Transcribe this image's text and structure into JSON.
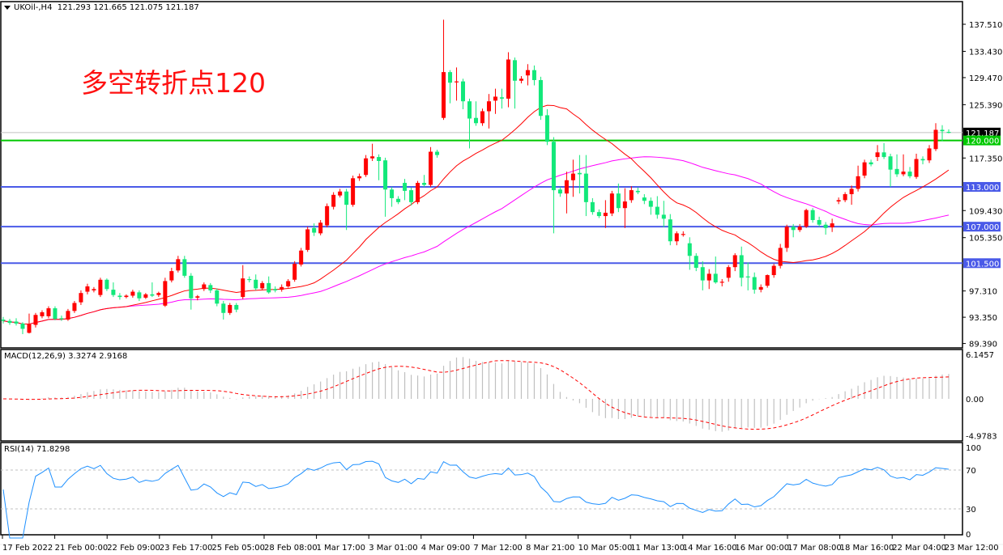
{
  "header": {
    "symbol": "UKOil-,H4",
    "ohlc": "121.293 121.665 121.075 121.187"
  },
  "annotation": "多空转折点120",
  "colors": {
    "up": "#ff0000",
    "down": "#12e87a",
    "ma_fast": "#ff0000",
    "ma_slow": "#ff00ff",
    "support": "#4a5ae8",
    "pivot": "#00c800",
    "current": "#000000",
    "rsi": "#1e90ff",
    "macd_hist": "#c0c0c0",
    "macd_signal": "#ff0000"
  },
  "price_axis": {
    "ticks": [
      "137.510",
      "133.430",
      "129.470",
      "125.390",
      "117.350",
      "109.430",
      "105.350",
      "97.310",
      "93.350",
      "89.390"
    ]
  },
  "levels": [
    {
      "value": 121.187,
      "label": "121.187",
      "kind": "current"
    },
    {
      "value": 120.0,
      "label": "120.000",
      "kind": "pivot"
    },
    {
      "value": 113.0,
      "label": "113.000",
      "kind": "support"
    },
    {
      "value": 107.0,
      "label": "107.000",
      "kind": "support"
    },
    {
      "value": 101.5,
      "label": "101.500",
      "kind": "support"
    }
  ],
  "macd": {
    "title": "MACD(12,26,9) 3.3274 2.9168",
    "ticks": [
      "6.1457",
      "0.00",
      "-4.9783"
    ]
  },
  "rsi": {
    "title": "RSI(14) 71.8298",
    "ticks": [
      "100",
      "70",
      "30",
      "0"
    ]
  },
  "time_axis": [
    "17 Feb 2022",
    "21 Feb 00:00",
    "22 Feb 09:00",
    "23 Feb 17:00",
    "25 Feb 05:00",
    "28 Feb 08:00",
    "1 Mar 17:00",
    "3 Mar 01:00",
    "4 Mar 09:00",
    "7 Mar 12:00",
    "8 Mar 21:00",
    "10 Mar 05:00",
    "11 Mar 13:00",
    "14 Mar 16:00",
    "16 Mar 00:00",
    "17 Mar 08:00",
    "18 Mar 16:00",
    "22 Mar 04:00",
    "23 Mar 12:00"
  ],
  "chart_data": {
    "type": "candlestick",
    "ylim": [
      89.39,
      137.51
    ],
    "ohlc": [
      [
        93.0,
        93.4,
        92.4,
        92.8
      ],
      [
        92.8,
        93.1,
        92.2,
        92.5
      ],
      [
        92.7,
        93.2,
        92.1,
        92.4
      ],
      [
        92.4,
        92.6,
        90.8,
        91.6
      ],
      [
        91.0,
        93.9,
        90.9,
        92.3
      ],
      [
        92.2,
        94.0,
        91.8,
        93.7
      ],
      [
        93.5,
        94.4,
        93.2,
        94.1
      ],
      [
        93.5,
        95.0,
        93.2,
        94.7
      ],
      [
        94.7,
        95.0,
        92.9,
        93.1
      ],
      [
        93.2,
        93.6,
        92.8,
        93.1
      ],
      [
        93.0,
        94.6,
        92.8,
        94.3
      ],
      [
        94.3,
        95.8,
        94.0,
        95.5
      ],
      [
        95.6,
        97.4,
        95.2,
        97.0
      ],
      [
        97.2,
        98.4,
        96.8,
        98.0
      ],
      [
        97.4,
        97.9,
        97.1,
        97.6
      ],
      [
        96.7,
        99.3,
        96.4,
        99.0
      ],
      [
        99.0,
        99.2,
        97.3,
        97.6
      ],
      [
        97.5,
        98.6,
        96.4,
        96.7
      ],
      [
        96.6,
        97.0,
        96.0,
        96.4
      ],
      [
        96.4,
        96.8,
        96.2,
        96.6
      ],
      [
        96.6,
        97.5,
        96.3,
        97.2
      ],
      [
        97.1,
        97.4,
        95.8,
        96.2
      ],
      [
        96.3,
        97.0,
        96.1,
        96.8
      ],
      [
        96.8,
        98.6,
        96.4,
        96.6
      ],
      [
        96.7,
        97.2,
        96.4,
        97.0
      ],
      [
        95.1,
        99.3,
        94.9,
        98.8
      ],
      [
        98.9,
        100.8,
        98.6,
        100.3
      ],
      [
        100.4,
        102.6,
        100.1,
        102.1
      ],
      [
        102.1,
        102.6,
        99.3,
        99.6
      ],
      [
        99.6,
        100.0,
        94.5,
        96.2
      ],
      [
        96.3,
        96.7,
        95.9,
        96.5
      ],
      [
        97.6,
        98.6,
        97.3,
        98.3
      ],
      [
        98.2,
        98.5,
        97.0,
        97.4
      ],
      [
        97.4,
        97.7,
        95.0,
        95.4
      ],
      [
        95.4,
        95.8,
        93.0,
        94.0
      ],
      [
        94.0,
        95.5,
        93.7,
        95.2
      ],
      [
        95.2,
        95.5,
        94.1,
        94.5
      ],
      [
        96.4,
        101.2,
        96.1,
        99.2
      ],
      [
        99.1,
        99.5,
        98.6,
        99.0
      ],
      [
        99.0,
        99.8,
        97.4,
        97.7
      ],
      [
        97.7,
        98.8,
        97.4,
        98.5
      ],
      [
        98.5,
        99.5,
        96.9,
        97.1
      ],
      [
        97.6,
        98.0,
        97.1,
        97.4
      ],
      [
        97.5,
        98.3,
        97.2,
        97.9
      ],
      [
        98.0,
        99.1,
        97.8,
        98.8
      ],
      [
        99.0,
        101.8,
        98.7,
        101.4
      ],
      [
        101.3,
        103.8,
        101.0,
        103.4
      ],
      [
        103.5,
        107.0,
        103.2,
        106.6
      ],
      [
        106.8,
        107.5,
        105.6,
        106.1
      ],
      [
        106.0,
        108.0,
        105.7,
        107.6
      ],
      [
        107.2,
        110.5,
        106.9,
        110.1
      ],
      [
        110.0,
        112.2,
        109.6,
        111.8
      ],
      [
        111.7,
        112.7,
        111.4,
        112.3
      ],
      [
        112.3,
        112.7,
        106.5,
        110.3
      ],
      [
        110.3,
        114.7,
        110.0,
        114.3
      ],
      [
        114.3,
        115.0,
        113.9,
        114.6
      ],
      [
        114.8,
        117.8,
        114.5,
        117.3
      ],
      [
        117.3,
        119.5,
        116.9,
        117.6
      ],
      [
        117.5,
        117.9,
        114.0,
        116.9
      ],
      [
        117.0,
        117.4,
        108.5,
        112.6
      ],
      [
        112.6,
        113.0,
        110.0,
        111.3
      ],
      [
        111.2,
        111.6,
        110.4,
        110.7
      ],
      [
        113.6,
        114.2,
        111.0,
        112.4
      ],
      [
        112.5,
        112.9,
        110.2,
        110.7
      ],
      [
        110.7,
        113.9,
        110.4,
        113.6
      ],
      [
        113.6,
        114.8,
        113.0,
        113.3
      ],
      [
        113.3,
        119.0,
        113.0,
        118.3
      ],
      [
        118.3,
        118.6,
        117.4,
        117.8
      ],
      [
        123.4,
        138.2,
        123.1,
        130.3
      ],
      [
        130.3,
        130.6,
        125.6,
        128.7
      ],
      [
        128.8,
        131.0,
        126.0,
        128.9
      ],
      [
        128.9,
        129.3,
        124.7,
        125.9
      ],
      [
        125.9,
        126.3,
        118.8,
        123.3
      ],
      [
        123.4,
        125.9,
        122.2,
        122.6
      ],
      [
        122.6,
        124.8,
        122.2,
        124.4
      ],
      [
        124.4,
        127.0,
        121.8,
        125.9
      ],
      [
        126.0,
        127.8,
        124.0,
        126.6
      ],
      [
        126.5,
        127.8,
        124.8,
        126.3
      ],
      [
        126.3,
        133.3,
        125.0,
        132.2
      ],
      [
        132.1,
        132.5,
        124.8,
        129.0
      ],
      [
        129.0,
        129.7,
        128.6,
        129.3
      ],
      [
        129.8,
        131.5,
        128.3,
        130.6
      ],
      [
        130.6,
        131.3,
        128.3,
        129.1
      ],
      [
        129.1,
        129.6,
        123.1,
        123.7
      ],
      [
        123.8,
        124.7,
        119.3,
        119.8
      ],
      [
        119.8,
        120.5,
        106.0,
        112.5
      ],
      [
        112.6,
        113.0,
        111.5,
        112.0
      ],
      [
        112.0,
        115.3,
        109.0,
        114.0
      ],
      [
        114.0,
        117.1,
        111.5,
        115.0
      ],
      [
        115.1,
        117.8,
        112.0,
        114.9
      ],
      [
        115.0,
        117.8,
        108.6,
        110.7
      ],
      [
        110.7,
        111.3,
        108.8,
        109.2
      ],
      [
        109.2,
        109.6,
        108.3,
        108.6
      ],
      [
        108.6,
        111.0,
        106.8,
        109.1
      ],
      [
        109.0,
        112.4,
        108.6,
        112.0
      ],
      [
        112.0,
        113.5,
        109.2,
        109.8
      ],
      [
        109.8,
        112.8,
        106.8,
        110.8
      ],
      [
        111.0,
        113.1,
        110.6,
        112.5
      ],
      [
        112.4,
        112.9,
        111.9,
        112.2
      ],
      [
        111.4,
        111.9,
        110.4,
        110.9
      ],
      [
        110.9,
        111.4,
        108.8,
        110.0
      ],
      [
        110.0,
        111.6,
        108.2,
        108.8
      ],
      [
        108.8,
        110.9,
        106.9,
        108.2
      ],
      [
        108.1,
        108.9,
        104.2,
        104.8
      ],
      [
        104.8,
        106.3,
        104.2,
        106.0
      ],
      [
        105.9,
        106.3,
        105.5,
        105.9
      ],
      [
        104.5,
        105.4,
        100.5,
        102.6
      ],
      [
        102.6,
        103.0,
        100.3,
        100.8
      ],
      [
        100.9,
        101.8,
        97.4,
        98.9
      ],
      [
        98.9,
        100.6,
        97.6,
        99.9
      ],
      [
        99.9,
        102.5,
        98.4,
        98.6
      ],
      [
        98.6,
        99.1,
        98.0,
        98.7
      ],
      [
        99.3,
        101.2,
        98.7,
        100.9
      ],
      [
        100.9,
        103.0,
        100.3,
        102.7
      ],
      [
        102.7,
        104.0,
        98.0,
        99.3
      ],
      [
        99.5,
        101.6,
        97.4,
        99.4
      ],
      [
        99.4,
        100.1,
        96.9,
        97.5
      ],
      [
        97.5,
        98.3,
        97.1,
        97.9
      ],
      [
        98.1,
        99.8,
        97.8,
        99.7
      ],
      [
        99.7,
        101.4,
        99.3,
        101.1
      ],
      [
        101.1,
        104.4,
        100.7,
        103.8
      ],
      [
        103.8,
        107.3,
        103.2,
        107.0
      ],
      [
        107.0,
        107.4,
        105.4,
        106.5
      ],
      [
        106.5,
        107.4,
        106.2,
        107.0
      ],
      [
        107.0,
        109.7,
        106.8,
        109.5
      ],
      [
        109.5,
        109.8,
        107.6,
        108.0
      ],
      [
        108.0,
        108.5,
        107.0,
        107.3
      ],
      [
        107.3,
        107.7,
        105.8,
        106.8
      ],
      [
        106.9,
        108.2,
        106.2,
        107.5
      ],
      [
        110.8,
        111.4,
        110.4,
        111.0
      ],
      [
        111.0,
        112.2,
        110.7,
        111.9
      ],
      [
        111.9,
        113.2,
        110.3,
        112.7
      ],
      [
        112.7,
        116.2,
        112.3,
        114.6
      ],
      [
        114.7,
        117.1,
        114.3,
        116.7
      ],
      [
        116.7,
        117.1,
        116.1,
        116.4
      ],
      [
        117.5,
        119.3,
        116.9,
        118.2
      ],
      [
        118.2,
        119.6,
        117.2,
        117.5
      ],
      [
        117.6,
        118.0,
        113.0,
        115.6
      ],
      [
        115.7,
        117.9,
        114.5,
        114.9
      ],
      [
        114.9,
        117.9,
        114.6,
        115.3
      ],
      [
        115.3,
        116.0,
        114.3,
        114.6
      ],
      [
        114.5,
        118.0,
        114.2,
        117.2
      ],
      [
        117.2,
        117.6,
        116.4,
        117.0
      ],
      [
        117.0,
        119.3,
        116.6,
        118.8
      ],
      [
        118.7,
        122.6,
        118.4,
        121.6
      ],
      [
        121.6,
        122.3,
        119.9,
        121.4
      ],
      [
        121.293,
        121.665,
        121.075,
        121.187
      ]
    ]
  }
}
